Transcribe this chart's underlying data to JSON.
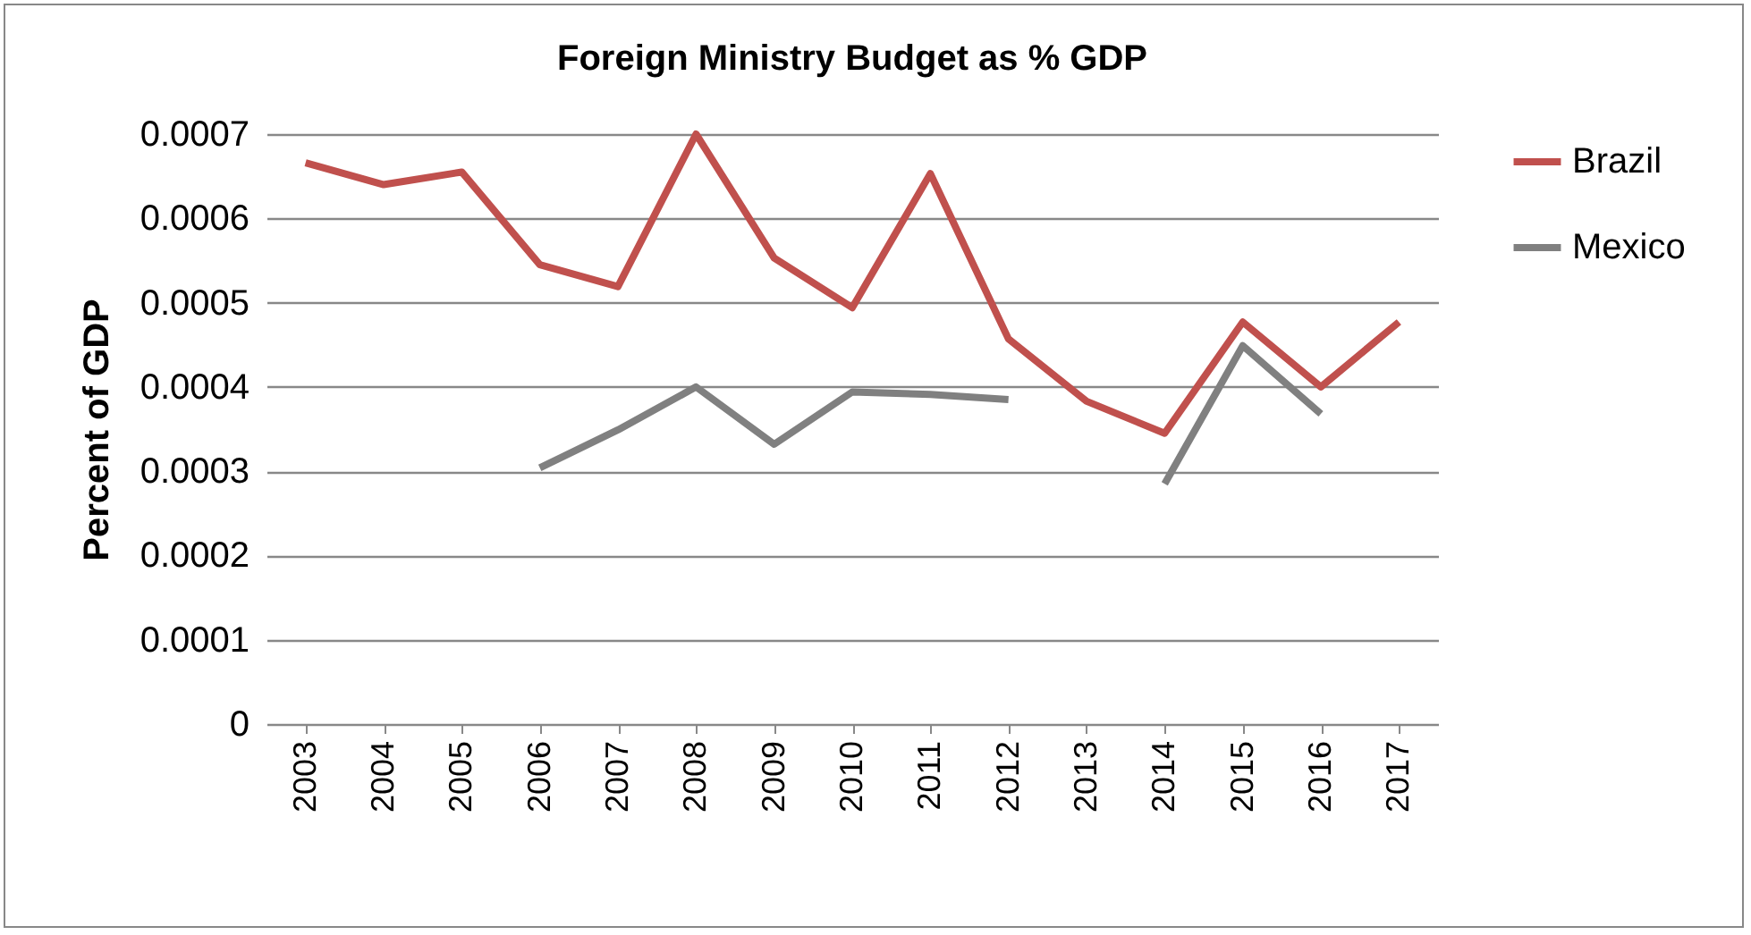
{
  "chart_data": {
    "type": "line",
    "title": "Foreign Ministry Budget as % GDP",
    "ylabel": "Percent of GDP",
    "categories": [
      "2003",
      "2004",
      "2005",
      "2006",
      "2007",
      "2008",
      "2009",
      "2010",
      "2011",
      "2012",
      "2013",
      "2014",
      "2015",
      "2016",
      "2017"
    ],
    "series": [
      {
        "name": "Brazil",
        "color": "#c0504d",
        "values": [
          0.000666,
          0.00064,
          0.000655,
          0.000545,
          0.000519,
          0.0007,
          0.000553,
          0.000494,
          0.000653,
          0.000457,
          0.000383,
          0.000345,
          0.000477,
          0.0004,
          0.000477
        ]
      },
      {
        "name": "Mexico",
        "color": "#808080",
        "values": [
          null,
          null,
          null,
          0.000304,
          0.000349,
          0.0004,
          0.000332,
          0.000394,
          0.000391,
          0.000385,
          null,
          0.000285,
          0.000449,
          0.000368,
          null
        ]
      }
    ],
    "ylim": [
      0,
      0.0007
    ],
    "yticks": [
      0,
      0.0001,
      0.0002,
      0.0003,
      0.0004,
      0.0005,
      0.0006,
      0.0007
    ],
    "grid": "y",
    "legend": "right",
    "marker": "none",
    "line_style": "solid"
  }
}
